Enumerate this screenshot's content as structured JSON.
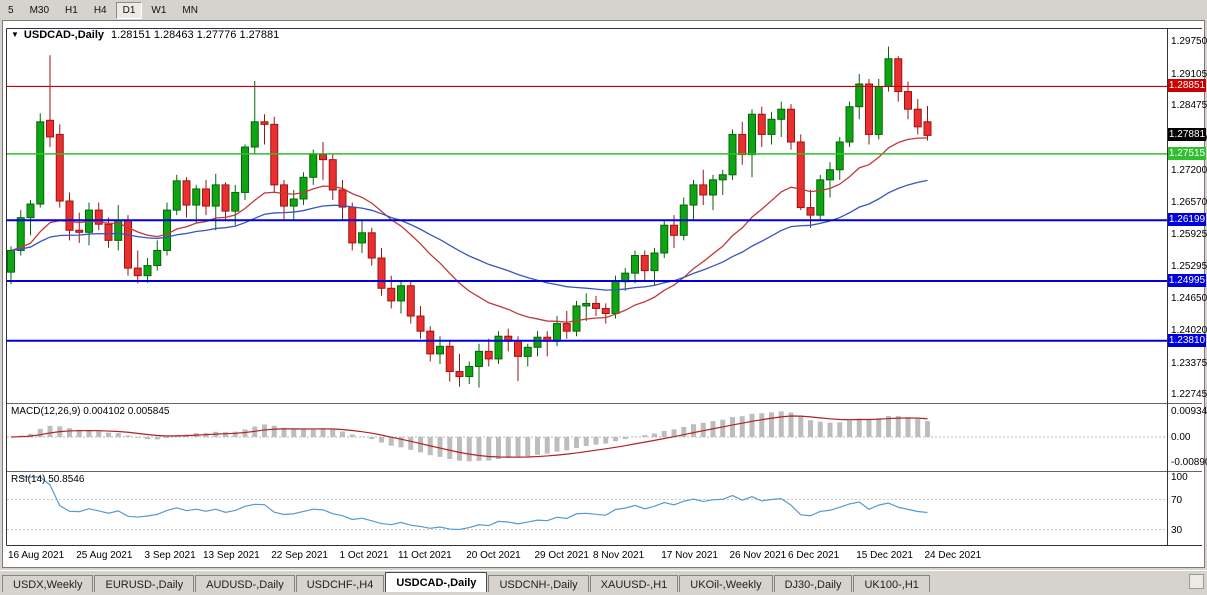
{
  "toolbar": {
    "timeframes": [
      "5",
      "M30",
      "H1",
      "H4",
      "D1",
      "W1",
      "MN"
    ],
    "active": "D1"
  },
  "tabs": {
    "items": [
      "USDX,Weekly",
      "EURUSD-,Daily",
      "AUDUSD-,Daily",
      "USDCHF-,H4",
      "USDCAD-,Daily",
      "USDCNH-,Daily",
      "XAUUSD-,H1",
      "UKOil-,Weekly",
      "DJ30-,Daily",
      "UK100-,H1"
    ],
    "active": "USDCAD-,Daily"
  },
  "chart_data": {
    "type": "candlestick",
    "symbol_label": "USDCAD-,Daily",
    "timeframe": "Daily",
    "ohlc_text": "1.28151 1.28463 1.27776 1.27881",
    "open": "1.28151",
    "high": "1.28463",
    "low": "1.27776",
    "close": "1.27881",
    "y_ticks": [
      "1.29750",
      "1.29105",
      "1.28475",
      "1.27830",
      "1.27200",
      "1.26570",
      "1.25925",
      "1.25295",
      "1.24650",
      "1.24020",
      "1.23375",
      "1.22745"
    ],
    "x_labels": [
      {
        "i": 0,
        "t": "16 Aug 2021"
      },
      {
        "i": 7,
        "t": "25 Aug 2021"
      },
      {
        "i": 14,
        "t": "3 Sep 2021"
      },
      {
        "i": 20,
        "t": "13 Sep 2021"
      },
      {
        "i": 27,
        "t": "22 Sep 2021"
      },
      {
        "i": 34,
        "t": "1 Oct 2021"
      },
      {
        "i": 40,
        "t": "11 Oct 2021"
      },
      {
        "i": 47,
        "t": "20 Oct 2021"
      },
      {
        "i": 54,
        "t": "29 Oct 2021"
      },
      {
        "i": 60,
        "t": "8 Nov 2021"
      },
      {
        "i": 67,
        "t": "17 Nov 2021"
      },
      {
        "i": 74,
        "t": "26 Nov 2021"
      },
      {
        "i": 80,
        "t": "6 Dec 2021"
      },
      {
        "i": 87,
        "t": "15 Dec 2021"
      },
      {
        "i": 94,
        "t": "24 Dec 2021"
      }
    ],
    "candles": [
      [
        1.2517,
        1.2568,
        1.2493,
        1.256
      ],
      [
        1.256,
        1.264,
        1.255,
        1.2625
      ],
      [
        1.2625,
        1.266,
        1.259,
        1.2652
      ],
      [
        1.2652,
        1.2832,
        1.2645,
        1.2815
      ],
      [
        1.2818,
        1.2947,
        1.2765,
        1.2785
      ],
      [
        1.279,
        1.281,
        1.2645,
        1.2658
      ],
      [
        1.2658,
        1.2675,
        1.258,
        1.26
      ],
      [
        1.26,
        1.2635,
        1.2575,
        1.2596
      ],
      [
        1.2596,
        1.2655,
        1.257,
        1.264
      ],
      [
        1.264,
        1.2655,
        1.26,
        1.2612
      ],
      [
        1.2612,
        1.2625,
        1.2565,
        1.258
      ],
      [
        1.258,
        1.265,
        1.256,
        1.262
      ],
      [
        1.262,
        1.263,
        1.251,
        1.2525
      ],
      [
        1.2525,
        1.256,
        1.2495,
        1.251
      ],
      [
        1.251,
        1.2545,
        1.2496,
        1.253
      ],
      [
        1.253,
        1.258,
        1.252,
        1.256
      ],
      [
        1.256,
        1.2655,
        1.255,
        1.264
      ],
      [
        1.264,
        1.271,
        1.263,
        1.2698
      ],
      [
        1.2698,
        1.2705,
        1.2625,
        1.265
      ],
      [
        1.265,
        1.269,
        1.2615,
        1.2682
      ],
      [
        1.2682,
        1.27,
        1.263,
        1.2648
      ],
      [
        1.2648,
        1.2712,
        1.26,
        1.269
      ],
      [
        1.269,
        1.2695,
        1.262,
        1.2638
      ],
      [
        1.2638,
        1.269,
        1.261,
        1.2675
      ],
      [
        1.2675,
        1.277,
        1.266,
        1.2765
      ],
      [
        1.2765,
        1.2896,
        1.275,
        1.2815
      ],
      [
        1.2815,
        1.283,
        1.277,
        1.281
      ],
      [
        1.281,
        1.2825,
        1.2675,
        1.269
      ],
      [
        1.269,
        1.27,
        1.262,
        1.2648
      ],
      [
        1.2648,
        1.268,
        1.262,
        1.2662
      ],
      [
        1.2662,
        1.2715,
        1.265,
        1.2705
      ],
      [
        1.2705,
        1.276,
        1.269,
        1.275
      ],
      [
        1.275,
        1.2775,
        1.27,
        1.274
      ],
      [
        1.274,
        1.275,
        1.266,
        1.268
      ],
      [
        1.268,
        1.27,
        1.262,
        1.2646
      ],
      [
        1.2646,
        1.2655,
        1.256,
        1.2575
      ],
      [
        1.2575,
        1.262,
        1.2555,
        1.2595
      ],
      [
        1.2595,
        1.2605,
        1.253,
        1.2545
      ],
      [
        1.2545,
        1.2565,
        1.247,
        1.2485
      ],
      [
        1.2485,
        1.251,
        1.2445,
        1.246
      ],
      [
        1.246,
        1.25,
        1.2435,
        1.249
      ],
      [
        1.249,
        1.25,
        1.2415,
        1.243
      ],
      [
        1.243,
        1.245,
        1.2385,
        1.24
      ],
      [
        1.24,
        1.241,
        1.234,
        1.2355
      ],
      [
        1.2355,
        1.239,
        1.2335,
        1.237
      ],
      [
        1.237,
        1.238,
        1.23,
        1.232
      ],
      [
        1.232,
        1.2355,
        1.229,
        1.231
      ],
      [
        1.231,
        1.234,
        1.2295,
        1.233
      ],
      [
        1.233,
        1.2375,
        1.2288,
        1.236
      ],
      [
        1.236,
        1.2385,
        1.233,
        1.2345
      ],
      [
        1.2345,
        1.24,
        1.2335,
        1.239
      ],
      [
        1.239,
        1.2405,
        1.236,
        1.238
      ],
      [
        1.238,
        1.239,
        1.2301,
        1.235
      ],
      [
        1.235,
        1.2375,
        1.233,
        1.2368
      ],
      [
        1.2368,
        1.24,
        1.235,
        1.2388
      ],
      [
        1.2388,
        1.24,
        1.235,
        1.238
      ],
      [
        1.238,
        1.243,
        1.237,
        1.2415
      ],
      [
        1.2415,
        1.244,
        1.2385,
        1.24
      ],
      [
        1.24,
        1.246,
        1.239,
        1.245
      ],
      [
        1.245,
        1.2475,
        1.242,
        1.2455
      ],
      [
        1.2455,
        1.247,
        1.243,
        1.2445
      ],
      [
        1.2445,
        1.2455,
        1.2415,
        1.2435
      ],
      [
        1.2435,
        1.251,
        1.2425,
        1.2498
      ],
      [
        1.2498,
        1.2525,
        1.248,
        1.2515
      ],
      [
        1.2515,
        1.256,
        1.2495,
        1.255
      ],
      [
        1.255,
        1.256,
        1.25,
        1.252
      ],
      [
        1.252,
        1.2565,
        1.249,
        1.2555
      ],
      [
        1.2555,
        1.262,
        1.2545,
        1.261
      ],
      [
        1.261,
        1.263,
        1.2565,
        1.259
      ],
      [
        1.259,
        1.2665,
        1.258,
        1.265
      ],
      [
        1.265,
        1.27,
        1.262,
        1.269
      ],
      [
        1.269,
        1.272,
        1.265,
        1.267
      ],
      [
        1.267,
        1.271,
        1.264,
        1.27
      ],
      [
        1.27,
        1.272,
        1.267,
        1.271
      ],
      [
        1.271,
        1.28,
        1.27,
        1.279
      ],
      [
        1.279,
        1.2815,
        1.273,
        1.275
      ],
      [
        1.275,
        1.284,
        1.2705,
        1.283
      ],
      [
        1.283,
        1.2845,
        1.2765,
        1.279
      ],
      [
        1.279,
        1.2835,
        1.277,
        1.282
      ],
      [
        1.282,
        1.2855,
        1.2785,
        1.284
      ],
      [
        1.284,
        1.285,
        1.276,
        1.2775
      ],
      [
        1.2775,
        1.279,
        1.264,
        1.2645
      ],
      [
        1.2645,
        1.268,
        1.2605,
        1.263
      ],
      [
        1.263,
        1.271,
        1.262,
        1.27
      ],
      [
        1.27,
        1.2735,
        1.2665,
        1.272
      ],
      [
        1.272,
        1.2785,
        1.27,
        1.2775
      ],
      [
        1.2775,
        1.2855,
        1.2765,
        1.2845
      ],
      [
        1.2845,
        1.291,
        1.282,
        1.289
      ],
      [
        1.289,
        1.29,
        1.277,
        1.279
      ],
      [
        1.279,
        1.29,
        1.278,
        1.2885
      ],
      [
        1.2885,
        1.2964,
        1.2875,
        1.294
      ],
      [
        1.294,
        1.2945,
        1.2855,
        1.2875
      ],
      [
        1.2875,
        1.2895,
        1.282,
        1.284
      ],
      [
        1.284,
        1.286,
        1.279,
        1.2805
      ],
      [
        1.28151,
        1.28463,
        1.27776,
        1.27881
      ]
    ],
    "levels": [
      {
        "price": 1.28851,
        "label": "1.28851",
        "color": "#cc0000",
        "width": 1.2
      },
      {
        "price": 1.27515,
        "label": "1.27515",
        "color": "#2fbf2f",
        "width": 1.5
      },
      {
        "price": 1.26199,
        "label": "1.26199",
        "color": "#0000dd",
        "width": 2
      },
      {
        "price": 1.24995,
        "label": "1.24995",
        "color": "#0000dd",
        "width": 2
      },
      {
        "price": 1.2381,
        "label": "1.23810",
        "color": "#0000dd",
        "width": 2
      }
    ],
    "current_price": {
      "price": 1.27881,
      "label": "1.27881",
      "color": "#000000"
    },
    "moving_averages": [
      {
        "type": "ema",
        "period": 20,
        "color": "#c03a3a"
      },
      {
        "type": "ema",
        "period": 45,
        "color": "#3a55c0"
      }
    ],
    "macd": {
      "label": "MACD(12,26,9) 0.004102 0.005845",
      "params": "12,26,9",
      "value": 0.004102,
      "signal_value": 0.005845,
      "y_ticks": [
        {
          "v": 0.009345,
          "t": "0.009345"
        },
        {
          "v": 0,
          "t": "0.00"
        },
        {
          "v": -0.0089,
          "t": "-0.00890"
        }
      ]
    },
    "rsi": {
      "label": "RSI(14) 50.8546",
      "period": 14,
      "value": 50.8546,
      "y_ticks": [
        {
          "v": 100,
          "t": "100"
        },
        {
          "v": 70,
          "t": "70"
        },
        {
          "v": 30,
          "t": "30"
        }
      ],
      "levels": [
        70,
        30
      ]
    },
    "colors": {
      "up": "#0da512",
      "up_border": "#06650a",
      "down": "#ea2f2f",
      "down_border": "#9d1414",
      "ma_fast": "#c03a3a",
      "ma_slow": "#3a55c0",
      "macd_hist": "#bdbdbd",
      "macd_signal": "#b22222",
      "rsi": "#559ad2",
      "grid": "#c8c8c8"
    }
  }
}
